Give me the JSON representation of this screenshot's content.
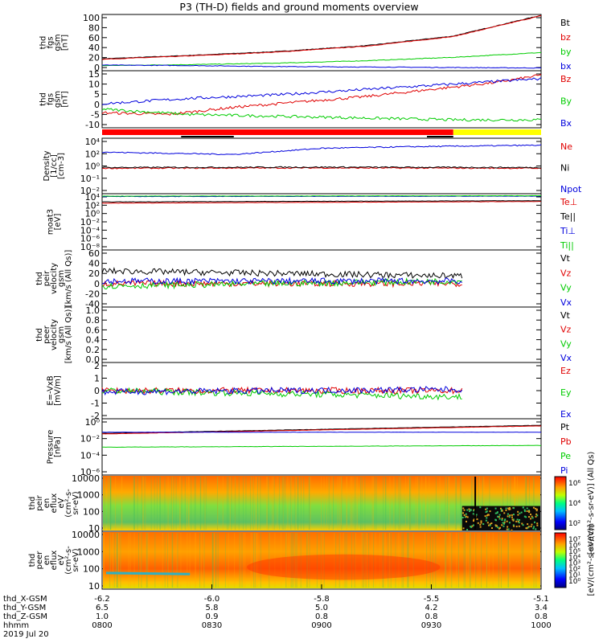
{
  "title": "P3 (TH-D) fields and ground moments overview",
  "colors": {
    "black": "#000000",
    "red": "#e00000",
    "green": "#00cc00",
    "blue": "#0000dd",
    "status_red": "#ff0000",
    "status_yellow": "#ffff00"
  },
  "chart_data": [
    {
      "type": "line",
      "id": "fgs",
      "ylabel": [
        "thd",
        "fgs",
        "gsm",
        "[nT]"
      ],
      "yticks": [
        "100",
        "80",
        "60",
        "40",
        "20",
        "0"
      ],
      "ylim": [
        -8,
        105
      ],
      "series": [
        {
          "name": "Bt",
          "color": "black",
          "x": [
            0,
            0.2,
            0.4,
            0.6,
            0.8,
            1.0
          ],
          "y": [
            15,
            22,
            30,
            42,
            62,
            105
          ]
        },
        {
          "name": "bz",
          "color": "red",
          "x": [
            0,
            0.2,
            0.4,
            0.6,
            0.8,
            1.0
          ],
          "y": [
            14,
            21,
            29,
            41,
            61,
            104
          ]
        },
        {
          "name": "by",
          "color": "green",
          "x": [
            0,
            0.2,
            0.4,
            0.6,
            0.8,
            1.0
          ],
          "y": [
            1,
            3,
            6,
            11,
            18,
            28
          ]
        },
        {
          "name": "bx",
          "color": "blue",
          "x": [
            0,
            0.2,
            0.4,
            0.6,
            0.8,
            1.0
          ],
          "y": [
            2,
            1,
            -1,
            -2,
            -3,
            -4
          ]
        }
      ]
    },
    {
      "type": "line",
      "id": "fgs_dsl",
      "ylabel": [
        "thd",
        "fgs",
        "gsm",
        "[nT]"
      ],
      "yticks": [
        "15",
        "10",
        "5",
        "0",
        "-5",
        "-10"
      ],
      "ylim": [
        -14,
        17
      ],
      "series": [
        {
          "name": "Bz",
          "color": "red",
          "x": [
            0,
            0.15,
            0.3,
            0.45,
            0.6,
            0.75,
            0.9,
            1.0
          ],
          "y": [
            -6,
            -7,
            -3,
            0,
            3,
            7,
            11,
            15
          ]
        },
        {
          "name": "By",
          "color": "green",
          "x": [
            0,
            0.2,
            0.4,
            0.6,
            0.8,
            1.0
          ],
          "y": [
            -4,
            -7,
            -8,
            -9,
            -10,
            -10
          ]
        },
        {
          "name": "Bx",
          "color": "blue",
          "x": [
            0,
            0.2,
            0.4,
            0.6,
            0.8,
            1.0
          ],
          "y": [
            -1,
            2,
            4,
            7,
            10,
            13
          ]
        }
      ]
    },
    {
      "type": "line",
      "id": "density",
      "ylabel": [
        "Density",
        "[1/cc]",
        "[cm-3]"
      ],
      "yticks": [
        "10⁴",
        "10²",
        "10⁰",
        "10⁻¹",
        "10⁻²"
      ],
      "ylim_log": [
        -3,
        4
      ],
      "series": [
        {
          "name": "Ne",
          "color": "red",
          "x": [
            0,
            0.5,
            1.0
          ],
          "y": [
            0.2,
            0.25,
            0.2
          ]
        },
        {
          "name": "Ni",
          "color": "black",
          "x": [
            0,
            0.5,
            1.0
          ],
          "y": [
            0.3,
            0.35,
            0.3
          ]
        },
        {
          "name": "Npot",
          "color": "blue",
          "x": [
            0,
            0.3,
            0.5,
            0.7,
            1.0
          ],
          "y": [
            2.3,
            2.0,
            2.8,
            3.0,
            3.2
          ]
        }
      ]
    },
    {
      "type": "line",
      "id": "temperature",
      "ylabel": [
        "moat3",
        "[eV]"
      ],
      "yticks": [
        "10⁴",
        "10²",
        "10⁰",
        "10⁻²",
        "10⁻⁴",
        "10⁻⁶",
        "10⁻⁸"
      ],
      "ylim_log": [
        -9,
        4.3
      ],
      "series": [
        {
          "name": "Te⊥",
          "color": "red",
          "x": [
            0,
            1.0
          ],
          "y": [
            2.2,
            2.6
          ]
        },
        {
          "name": "Te||",
          "color": "black",
          "x": [
            0,
            1.0
          ],
          "y": [
            2.5,
            2.8
          ]
        },
        {
          "name": "Ti⊥",
          "color": "blue",
          "x": [
            0,
            1.0
          ],
          "y": [
            3.8,
            3.9
          ]
        },
        {
          "name": "Ti||",
          "color": "green",
          "x": [
            0,
            1.0
          ],
          "y": [
            3.9,
            4.0
          ]
        }
      ]
    },
    {
      "type": "line",
      "id": "peir_velocity",
      "ylabel": [
        "thd",
        "peir",
        "velocity",
        "gsm",
        "[km/s (All Qs)]"
      ],
      "yticks": [
        "60",
        "40",
        "20",
        "0",
        "-20",
        "-40"
      ],
      "ylim": [
        -45,
        65
      ],
      "series": [
        {
          "name": "Vt",
          "color": "black",
          "x": [
            0,
            0.82
          ],
          "y": [
            25,
            15
          ]
        },
        {
          "name": "Vz",
          "color": "red",
          "x": [
            0,
            0.82
          ],
          "y": [
            0,
            0
          ]
        },
        {
          "name": "Vy",
          "color": "green",
          "x": [
            0,
            0.82
          ],
          "y": [
            -5,
            5
          ]
        },
        {
          "name": "Vx",
          "color": "blue",
          "x": [
            0,
            0.82
          ],
          "y": [
            5,
            5
          ]
        }
      ]
    },
    {
      "type": "line",
      "id": "peer_velocity",
      "ylabel": [
        "thd",
        "peer",
        "velocity",
        "gsm",
        "[km/s (All Qs)]"
      ],
      "yticks": [
        "1.0",
        "0.8",
        "0.6",
        "0.4",
        "0.2",
        "0.0"
      ],
      "ylim": [
        0,
        1.05
      ],
      "series": [
        {
          "name": "Vt",
          "color": "black",
          "x": [],
          "y": []
        },
        {
          "name": "Vz",
          "color": "red",
          "x": [],
          "y": []
        },
        {
          "name": "Vy",
          "color": "green",
          "x": [],
          "y": []
        },
        {
          "name": "Vx",
          "color": "blue",
          "x": [],
          "y": []
        }
      ]
    },
    {
      "type": "line",
      "id": "efield",
      "ylabel": [
        "E=-VxB",
        "[mV/m]"
      ],
      "yticks": [
        "2",
        "1",
        "0",
        "-1",
        "-2"
      ],
      "ylim": [
        -2.2,
        2.2
      ],
      "series": [
        {
          "name": "Ez",
          "color": "red",
          "x": [
            0,
            0.82
          ],
          "y": [
            0,
            0
          ]
        },
        {
          "name": "Ey",
          "color": "green",
          "x": [
            0,
            0.82
          ],
          "y": [
            0,
            -0.5
          ]
        },
        {
          "name": "Ex",
          "color": "blue",
          "x": [
            0,
            0.82
          ],
          "y": [
            -0.1,
            0.1
          ]
        }
      ]
    },
    {
      "type": "line",
      "id": "pressure",
      "ylabel": [
        "Pressure",
        "[nPa]"
      ],
      "yticks": [
        "10⁰",
        "10⁻²",
        "10⁻⁴",
        "10⁻⁶"
      ],
      "ylim_log": [
        -7.5,
        2
      ],
      "series": [
        {
          "name": "Pt",
          "color": "black",
          "x": [
            0,
            1.0
          ],
          "y": [
            -0.4,
            1.0
          ]
        },
        {
          "name": "Pb",
          "color": "red",
          "x": [
            0,
            1.0
          ],
          "y": [
            -0.5,
            0.9
          ]
        },
        {
          "name": "Pe",
          "color": "green",
          "x": [
            0,
            1.0
          ],
          "y": [
            -2.8,
            -2.5
          ]
        },
        {
          "name": "Pi",
          "color": "blue",
          "x": [
            0,
            1.0
          ],
          "y": [
            -0.2,
            -0.2
          ]
        }
      ]
    },
    {
      "type": "heatmap",
      "id": "peir_spec",
      "ylabel": [
        "thd",
        "peir",
        "en",
        "eflux",
        "eV",
        "(cm²-s-",
        "sr-eV)"
      ],
      "yticks": [
        "10000",
        "1000",
        "100",
        "10"
      ],
      "ylim_log": [
        0.7,
        4.3
      ],
      "colorbar_label": "[eV/(cm²-s-sr-eV)] (All Qs)",
      "colorbar_ticks": [
        "10⁶",
        "10⁴",
        "10²"
      ]
    },
    {
      "type": "heatmap",
      "id": "peer_spec",
      "ylabel": [
        "thd",
        "peer",
        "en",
        "eflux",
        "eV",
        "(cm²-s-",
        "sr-eV)"
      ],
      "yticks": [
        "10000",
        "1000",
        "100",
        "10"
      ],
      "ylim_log": [
        0.7,
        4.3
      ],
      "colorbar_label": "[eV/(cm²-s-sr-eV)]",
      "colorbar_ticks": [
        "10⁷",
        "10⁶",
        "10⁵",
        "10⁴",
        "10³",
        "10²",
        "10¹",
        "10⁰"
      ]
    }
  ],
  "x_axis": {
    "ticks": [
      {
        "pos": 0.0,
        "X": "-6.2",
        "Y": "6.5",
        "Z": "1.0",
        "hhmm": "0800"
      },
      {
        "pos": 0.25,
        "X": "-6.0",
        "Y": "5.8",
        "Z": "0.9",
        "hhmm": "0830"
      },
      {
        "pos": 0.5,
        "X": "-5.8",
        "Y": "5.0",
        "Z": "0.8",
        "hhmm": "0900"
      },
      {
        "pos": 0.75,
        "X": "-5.5",
        "Y": "4.2",
        "Z": "0.8",
        "hhmm": "0930"
      },
      {
        "pos": 1.0,
        "X": "-5.1",
        "Y": "3.4",
        "Z": "0.8",
        "hhmm": "1000"
      }
    ],
    "row_labels": [
      "thd_X-GSM",
      "thd_Y-GSM",
      "thd_Z-GSM",
      "hhmm",
      "2019 Jul 20"
    ]
  }
}
